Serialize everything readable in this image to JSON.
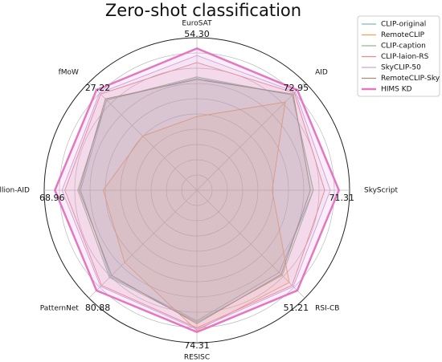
{
  "chart_data": {
    "type": "radar",
    "title": "Zero-shot classification",
    "axes": [
      {
        "name": "EuroSAT",
        "max": {
          "value": 54.3,
          "label": "54.30"
        }
      },
      {
        "name": "AID",
        "max": 72.95
      },
      {
        "name": "SkyScript",
        "max": 71.31
      },
      {
        "name": "RSI-CB",
        "max": 51.21
      },
      {
        "name": "RESISC",
        "max": 74.31
      },
      {
        "name": "PatternNet",
        "max": 80.88
      },
      {
        "name": "Million-AID",
        "max": 68.96
      },
      {
        "name": "fMoW",
        "max": 27.22
      }
    ],
    "series": [
      {
        "name": "CLIP-original",
        "color": "#7fb2d5",
        "values": [
          42.9,
          69.3,
          58.5,
          42.0,
          68.4,
          69.6,
          56.5,
          24.5
        ]
      },
      {
        "name": "RemoteCLIP",
        "color": "#f5a25d",
        "values": [
          28.2,
          64.2,
          37.8,
          47.1,
          73.5,
          58.2,
          45.5,
          14.7
        ]
      },
      {
        "name": "CLIP-caption",
        "color": "#8cbf88",
        "values": [
          43.4,
          69.3,
          58.5,
          43.5,
          69.1,
          70.4,
          57.9,
          24.5
        ]
      },
      {
        "name": "CLIP-laion-RS",
        "color": "#e98a8a",
        "values": [
          48.9,
          70.8,
          64.2,
          48.6,
          72.1,
          76.8,
          64.1,
          26.1
        ]
      },
      {
        "name": "SkyCLIP-50",
        "color": "#c9a6dc",
        "values": [
          51.6,
          71.5,
          67.0,
          49.2,
          72.8,
          77.6,
          65.5,
          26.4
        ]
      },
      {
        "name": "RemoteCLIP-Sky",
        "color": "#a98a86",
        "values": [
          42.4,
          70.0,
          57.0,
          43.0,
          69.9,
          68.7,
          57.2,
          24.8
        ]
      },
      {
        "name": "HIMS KD",
        "color": "#e377c2",
        "values": [
          54.3,
          72.95,
          71.31,
          51.21,
          74.31,
          80.88,
          68.96,
          27.22
        ]
      }
    ]
  }
}
